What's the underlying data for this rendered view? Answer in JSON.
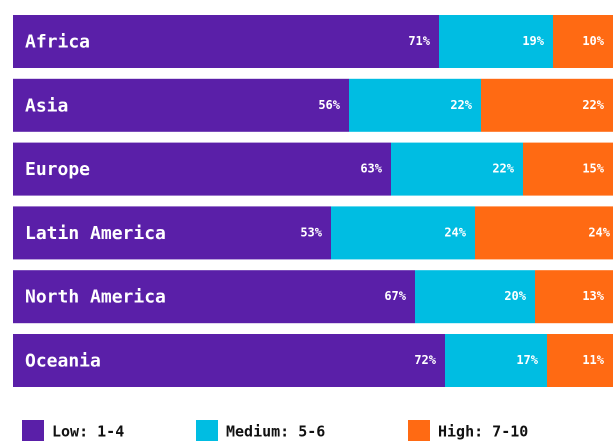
{
  "chart_data": {
    "type": "stacked-bar",
    "orientation": "horizontal",
    "categories": [
      "Africa",
      "Asia",
      "Europe",
      "Latin America",
      "North America",
      "Oceania"
    ],
    "xlim": [
      0,
      100
    ],
    "series": [
      {
        "name": "Low: 1-4",
        "color": "#5a1fa8",
        "values": [
          71,
          56,
          63,
          53,
          67,
          72
        ],
        "value_labels": [
          "71%",
          "56%",
          "63%",
          "53%",
          "67%",
          "72%"
        ]
      },
      {
        "name": "Medium: 5-6",
        "color": "#00bde2",
        "values": [
          19,
          22,
          22,
          24,
          20,
          17
        ],
        "value_labels": [
          "19%",
          "22%",
          "22%",
          "24%",
          "20%",
          "17%"
        ]
      },
      {
        "name": "High: 7-10",
        "color": "#ff6a13",
        "values": [
          10,
          22,
          15,
          24,
          13,
          11
        ],
        "value_labels": [
          "10%",
          "22%",
          "15%",
          "24%",
          "13%",
          "11%"
        ]
      }
    ]
  }
}
